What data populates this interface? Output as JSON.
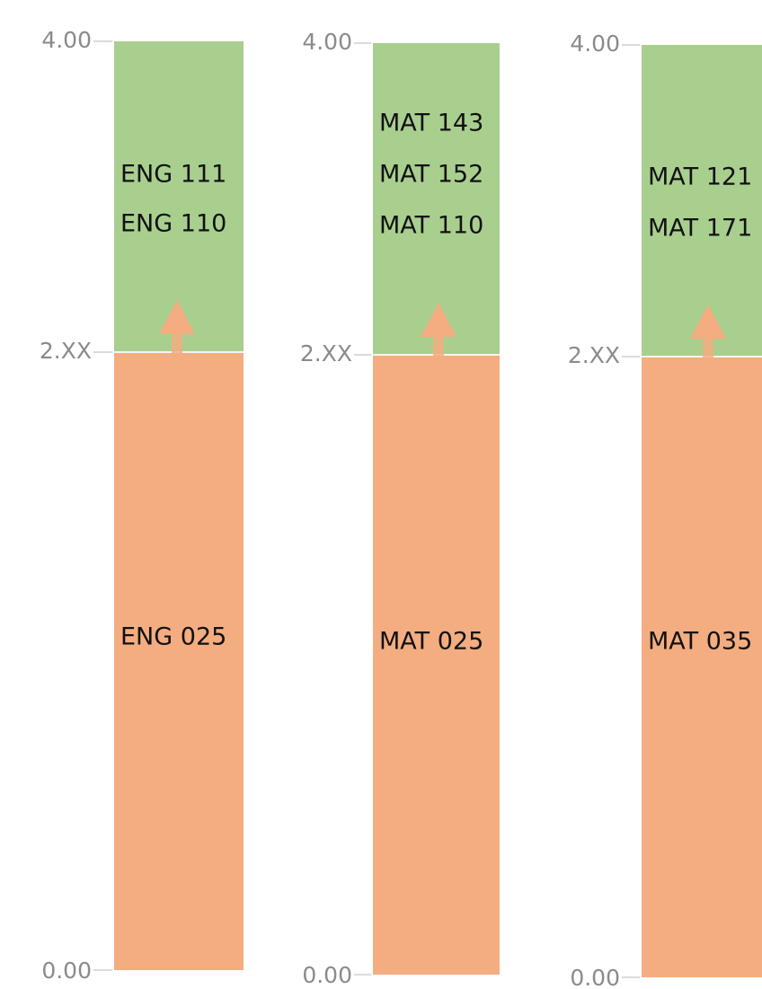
{
  "columns": [
    {
      "axis_labels": [
        "4.00",
        "2.XX",
        "0.00"
      ],
      "upper_courses": [
        "ENG 111",
        "ENG 110"
      ],
      "lower_course": "ENG 025"
    },
    {
      "axis_labels": [
        "4.00",
        "2.XX",
        "0.00"
      ],
      "upper_courses": [
        "MAT 143",
        "MAT 152",
        "MAT 110"
      ],
      "lower_course": "MAT 025"
    },
    {
      "axis_labels": [
        "4.00",
        "2.XX",
        "0.00"
      ],
      "upper_courses": [
        "MAT 121",
        "MAT 171"
      ],
      "lower_course": "MAT 035"
    }
  ]
}
